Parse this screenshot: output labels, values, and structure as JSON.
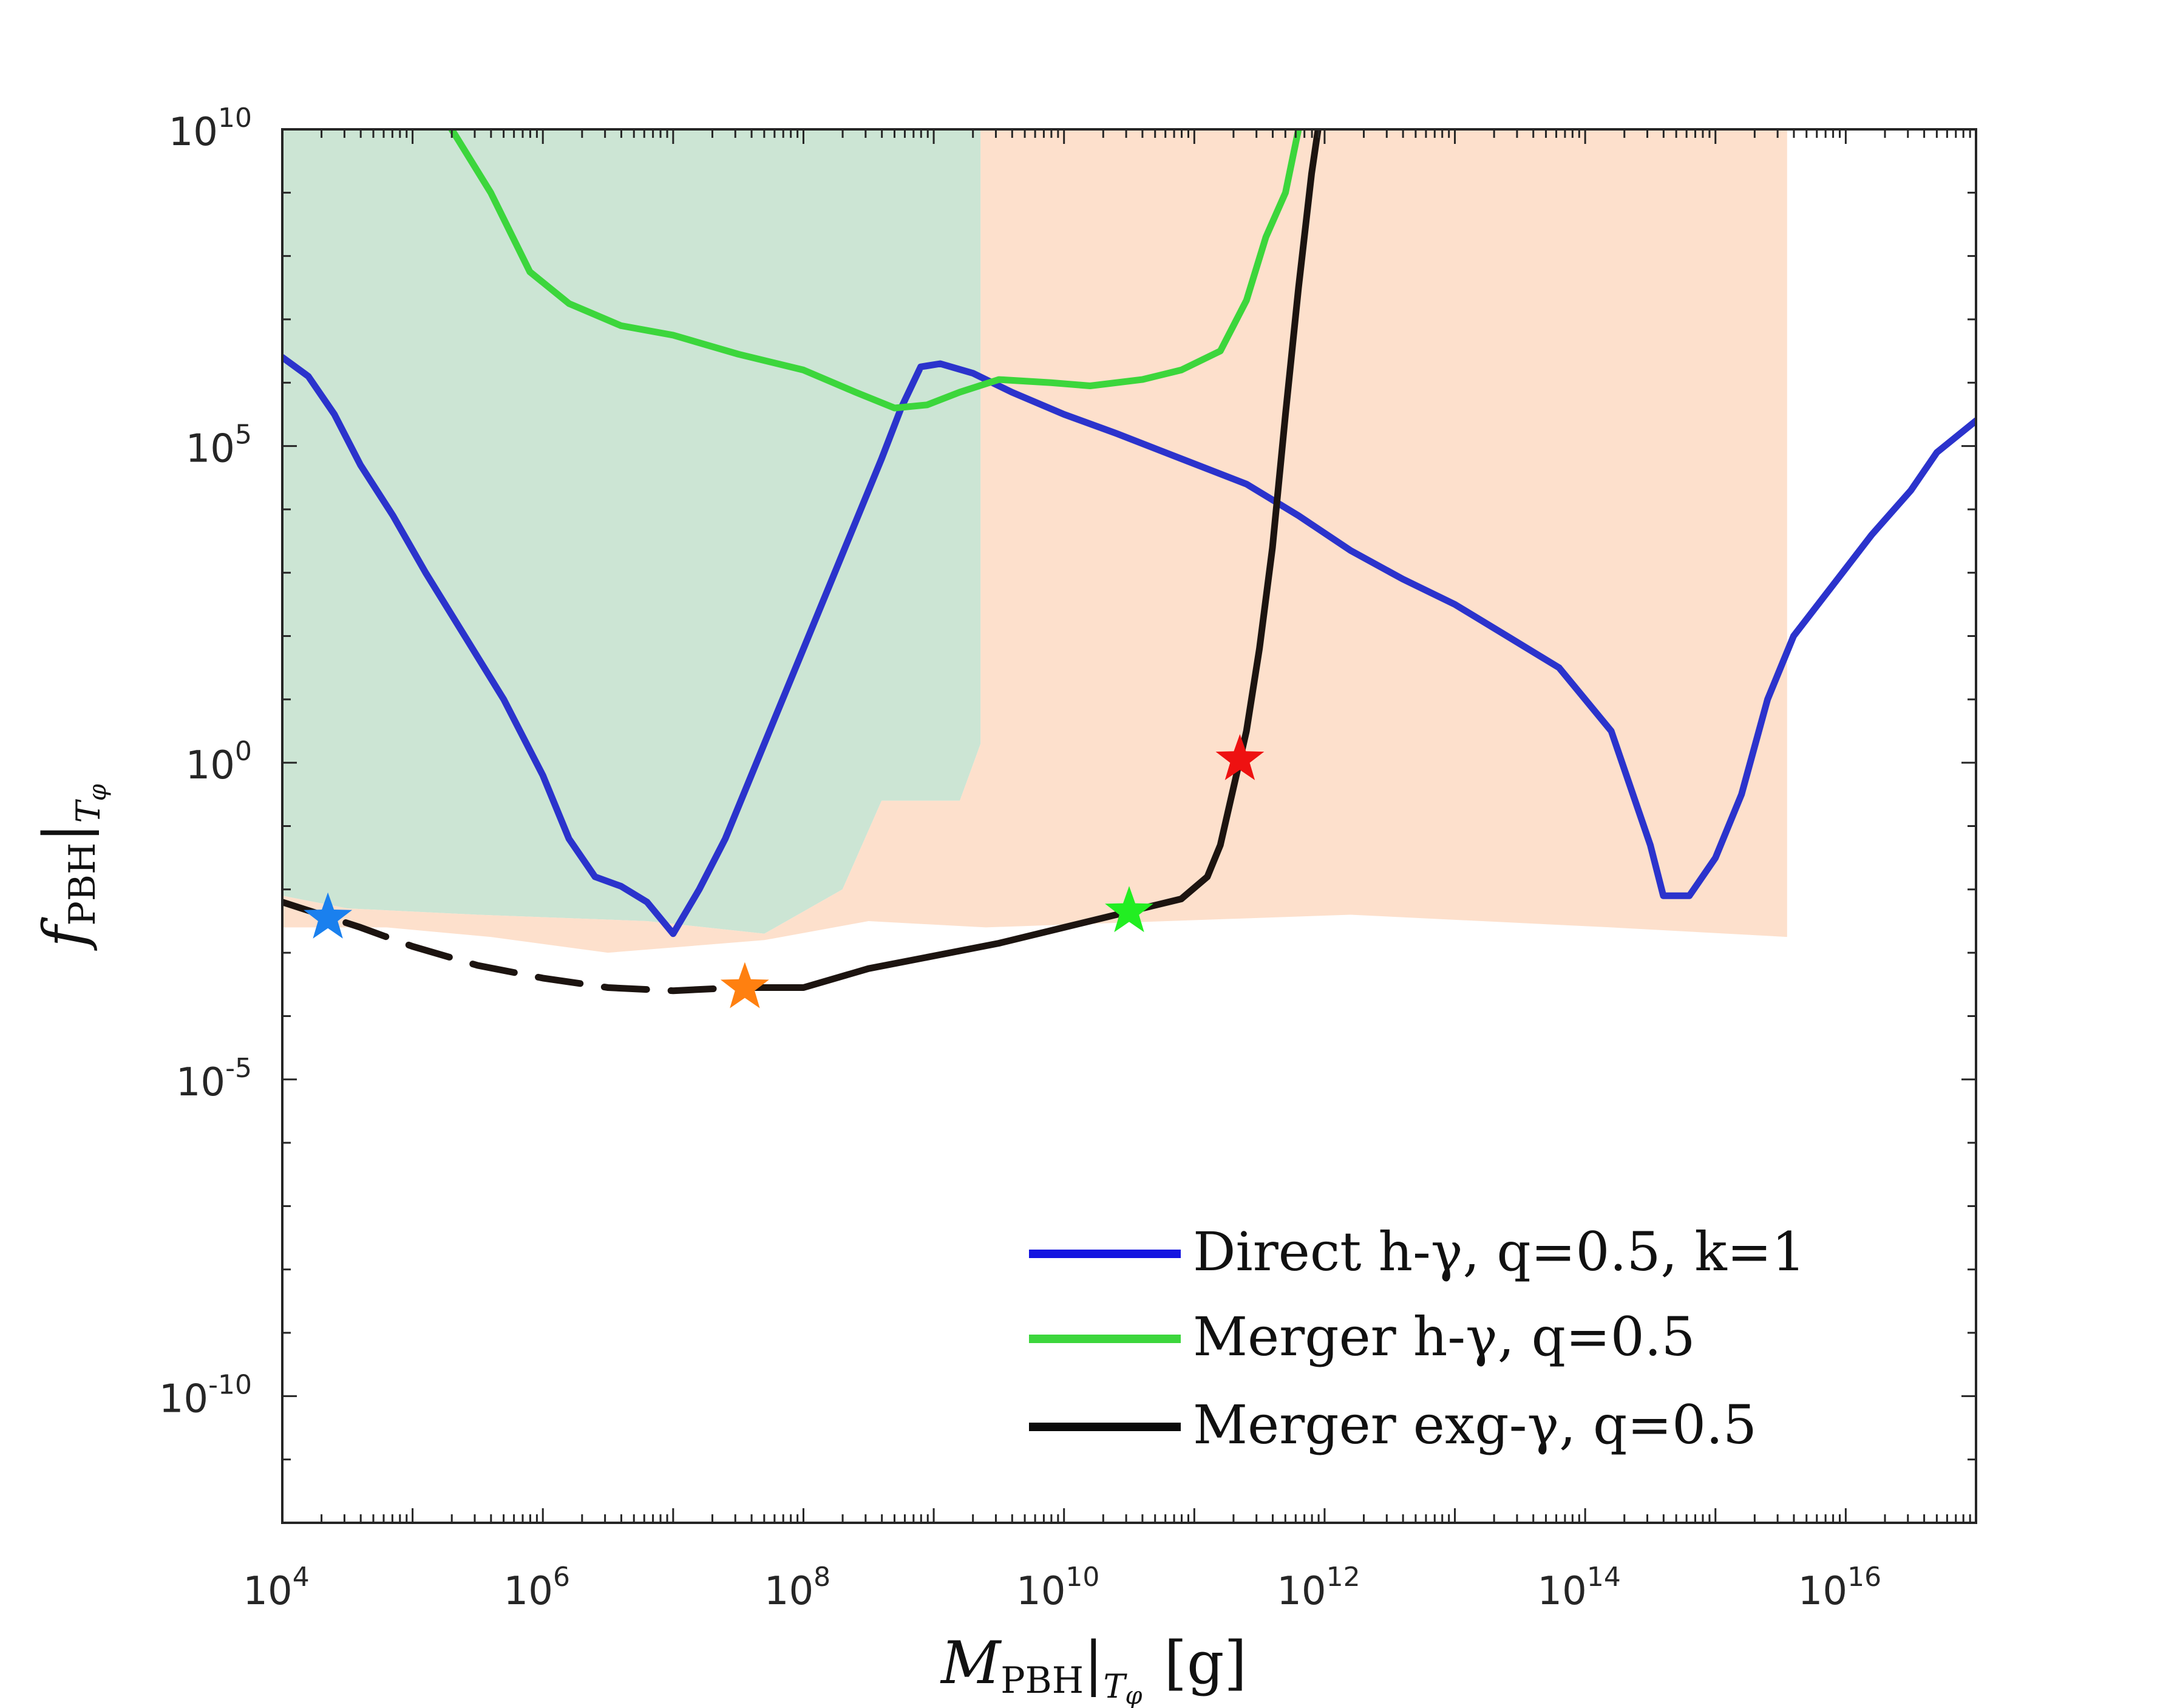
{
  "chart_data": {
    "type": "line",
    "xlabel": "M_PBH|_{T_φ} [g]",
    "ylabel": "f_PBH|_{T_φ}",
    "xlabel_parts": {
      "symbol": "M",
      "sub": "PBH",
      "sub2": "T",
      "sub3": "φ",
      "unit": "[g]"
    },
    "ylabel_parts": {
      "symbol": "f",
      "sub": "PBH",
      "sub2": "T",
      "sub3": "φ"
    },
    "x_scale": "log10",
    "y_scale": "log10",
    "xlim_log10": [
      4,
      17
    ],
    "ylim_log10": [
      -12,
      10
    ],
    "x_ticks": [
      {
        "base": "10",
        "exp": "4",
        "value_log10": 4
      },
      {
        "base": "10",
        "exp": "6",
        "value_log10": 6
      },
      {
        "base": "10",
        "exp": "8",
        "value_log10": 8
      },
      {
        "base": "10",
        "exp": "10",
        "value_log10": 10
      },
      {
        "base": "10",
        "exp": "12",
        "value_log10": 12
      },
      {
        "base": "10",
        "exp": "14",
        "value_log10": 14
      },
      {
        "base": "10",
        "exp": "16",
        "value_log10": 16
      }
    ],
    "y_ticks": [
      {
        "base": "10",
        "exp": "10",
        "value_log10": 10
      },
      {
        "base": "10",
        "exp": "5",
        "value_log10": 5
      },
      {
        "base": "10",
        "exp": "0",
        "value_log10": 0
      },
      {
        "base": "10",
        "exp": "-5",
        "value_log10": -5
      },
      {
        "base": "10",
        "exp": "-10",
        "value_log10": -10
      }
    ],
    "shaded_regions": [
      {
        "name": "green-excluded-region",
        "color": "#cce5d4",
        "polygon_log10": [
          [
            4,
            10
          ],
          [
            9.36,
            10
          ],
          [
            9.36,
            0.3
          ],
          [
            9.2,
            -0.6
          ],
          [
            8.6,
            -0.6
          ],
          [
            8.3,
            -2
          ],
          [
            7.7,
            -2.7
          ],
          [
            6.8,
            -2.5
          ],
          [
            5.5,
            -2.4
          ],
          [
            4.5,
            -2.3
          ],
          [
            4,
            -2.1
          ]
        ]
      },
      {
        "name": "orange-excluded-region",
        "color": "#fde0cc",
        "polygon_log10": [
          [
            9.36,
            10
          ],
          [
            15.55,
            10
          ],
          [
            15.55,
            -2.75
          ],
          [
            14.2,
            -2.6
          ],
          [
            12.2,
            -2.4
          ],
          [
            9.4,
            -2.6
          ],
          [
            8.5,
            -2.5
          ],
          [
            7.7,
            -2.8
          ],
          [
            6.5,
            -3
          ],
          [
            5.6,
            -2.75
          ],
          [
            4.8,
            -2.6
          ],
          [
            4,
            -2.6
          ],
          [
            4,
            -2.1
          ],
          [
            4.5,
            -2.3
          ],
          [
            5.5,
            -2.4
          ],
          [
            6.8,
            -2.5
          ],
          [
            7.7,
            -2.7
          ],
          [
            8.3,
            -2
          ],
          [
            8.6,
            -0.6
          ],
          [
            9.2,
            -0.6
          ],
          [
            9.36,
            0.3
          ]
        ]
      }
    ],
    "series": [
      {
        "name": "Direct h-γ, q=0.5, k=1",
        "color": "#2b33cc",
        "style": "solid",
        "points_log10": [
          [
            4,
            6.4
          ],
          [
            4.2,
            6.1
          ],
          [
            4.4,
            5.5
          ],
          [
            4.6,
            4.7
          ],
          [
            4.85,
            3.9
          ],
          [
            5.1,
            3.0
          ],
          [
            5.4,
            2.0
          ],
          [
            5.7,
            1.0
          ],
          [
            6.0,
            -0.2
          ],
          [
            6.2,
            -1.2
          ],
          [
            6.4,
            -1.8
          ],
          [
            6.6,
            -1.95
          ],
          [
            6.8,
            -2.2
          ],
          [
            7.0,
            -2.7
          ],
          [
            7.2,
            -2.0
          ],
          [
            7.4,
            -1.2
          ],
          [
            7.6,
            -0.2
          ],
          [
            7.8,
            0.8
          ],
          [
            8.0,
            1.8
          ],
          [
            8.2,
            2.8
          ],
          [
            8.4,
            3.8
          ],
          [
            8.6,
            4.8
          ],
          [
            8.75,
            5.6
          ],
          [
            8.9,
            6.25
          ],
          [
            9.05,
            6.3
          ],
          [
            9.3,
            6.15
          ],
          [
            9.6,
            5.85
          ],
          [
            10.0,
            5.5
          ],
          [
            10.4,
            5.2
          ],
          [
            10.9,
            4.8
          ],
          [
            11.4,
            4.4
          ],
          [
            11.8,
            3.9
          ],
          [
            12.2,
            3.35
          ],
          [
            12.6,
            2.9
          ],
          [
            13.0,
            2.5
          ],
          [
            13.4,
            2.0
          ],
          [
            13.8,
            1.5
          ],
          [
            14.2,
            0.5
          ],
          [
            14.5,
            -1.3
          ],
          [
            14.6,
            -2.1
          ],
          [
            14.8,
            -2.1
          ],
          [
            15.0,
            -1.5
          ],
          [
            15.2,
            -0.5
          ],
          [
            15.4,
            1.0
          ],
          [
            15.6,
            2.0
          ],
          [
            15.9,
            2.8
          ],
          [
            16.2,
            3.6
          ],
          [
            16.5,
            4.3
          ],
          [
            16.7,
            4.9
          ],
          [
            17.0,
            5.4
          ]
        ]
      },
      {
        "name": "Merger h-γ, q=0.5",
        "color": "#3cd63c",
        "style": "solid",
        "points_log10": [
          [
            5.3,
            10
          ],
          [
            5.6,
            9.0
          ],
          [
            5.9,
            7.75
          ],
          [
            6.2,
            7.25
          ],
          [
            6.6,
            6.9
          ],
          [
            7.0,
            6.75
          ],
          [
            7.5,
            6.45
          ],
          [
            8.0,
            6.2
          ],
          [
            8.4,
            5.85
          ],
          [
            8.7,
            5.6
          ],
          [
            8.95,
            5.65
          ],
          [
            9.2,
            5.85
          ],
          [
            9.5,
            6.05
          ],
          [
            9.9,
            6.0
          ],
          [
            10.2,
            5.95
          ],
          [
            10.6,
            6.05
          ],
          [
            10.9,
            6.2
          ],
          [
            11.2,
            6.5
          ],
          [
            11.4,
            7.3
          ],
          [
            11.55,
            8.3
          ],
          [
            11.7,
            9.0
          ],
          [
            11.8,
            10
          ]
        ]
      },
      {
        "name": "Merger exg-γ, q=0.5",
        "color": "#1c1410",
        "style": "mixed",
        "dashed_segment_log10": [
          [
            4,
            -2.2
          ],
          [
            4.3,
            -2.4
          ],
          [
            4.6,
            -2.6
          ],
          [
            5.0,
            -2.9
          ],
          [
            5.5,
            -3.2
          ],
          [
            6.0,
            -3.4
          ],
          [
            6.5,
            -3.55
          ],
          [
            7.0,
            -3.6
          ],
          [
            7.5,
            -3.55
          ]
        ],
        "solid_segment_log10": [
          [
            7.5,
            -3.55
          ],
          [
            8.0,
            -3.55
          ],
          [
            8.5,
            -3.25
          ],
          [
            9.0,
            -3.05
          ],
          [
            9.5,
            -2.85
          ],
          [
            10.0,
            -2.6
          ],
          [
            10.5,
            -2.35
          ],
          [
            10.9,
            -2.15
          ],
          [
            11.1,
            -1.8
          ],
          [
            11.2,
            -1.3
          ],
          [
            11.3,
            -0.4
          ],
          [
            11.4,
            0.5
          ],
          [
            11.5,
            1.8
          ],
          [
            11.6,
            3.4
          ],
          [
            11.7,
            5.5
          ],
          [
            11.8,
            7.5
          ],
          [
            11.9,
            9.3
          ],
          [
            11.95,
            10
          ]
        ]
      }
    ],
    "markers": [
      {
        "name": "blue-star",
        "color": "#1a80ee",
        "x_log10": 4.35,
        "y_log10": -2.45
      },
      {
        "name": "orange-star",
        "color": "#ff8010",
        "x_log10": 7.55,
        "y_log10": -3.55
      },
      {
        "name": "green-star",
        "color": "#22ee22",
        "x_log10": 10.5,
        "y_log10": -2.35
      },
      {
        "name": "red-star",
        "color": "#ee1111",
        "x_log10": 11.35,
        "y_log10": 0.05
      }
    ],
    "legend": {
      "position": "bottom-right",
      "entries": [
        {
          "text": "Direct h-γ, q=0.5, k=1",
          "color": "#1515e0"
        },
        {
          "text": "Merger h-γ, q=0.5",
          "color": "#3cd63c"
        },
        {
          "text": "Merger exg-γ, q=0.5",
          "color": "#0a0a0a"
        }
      ]
    }
  }
}
